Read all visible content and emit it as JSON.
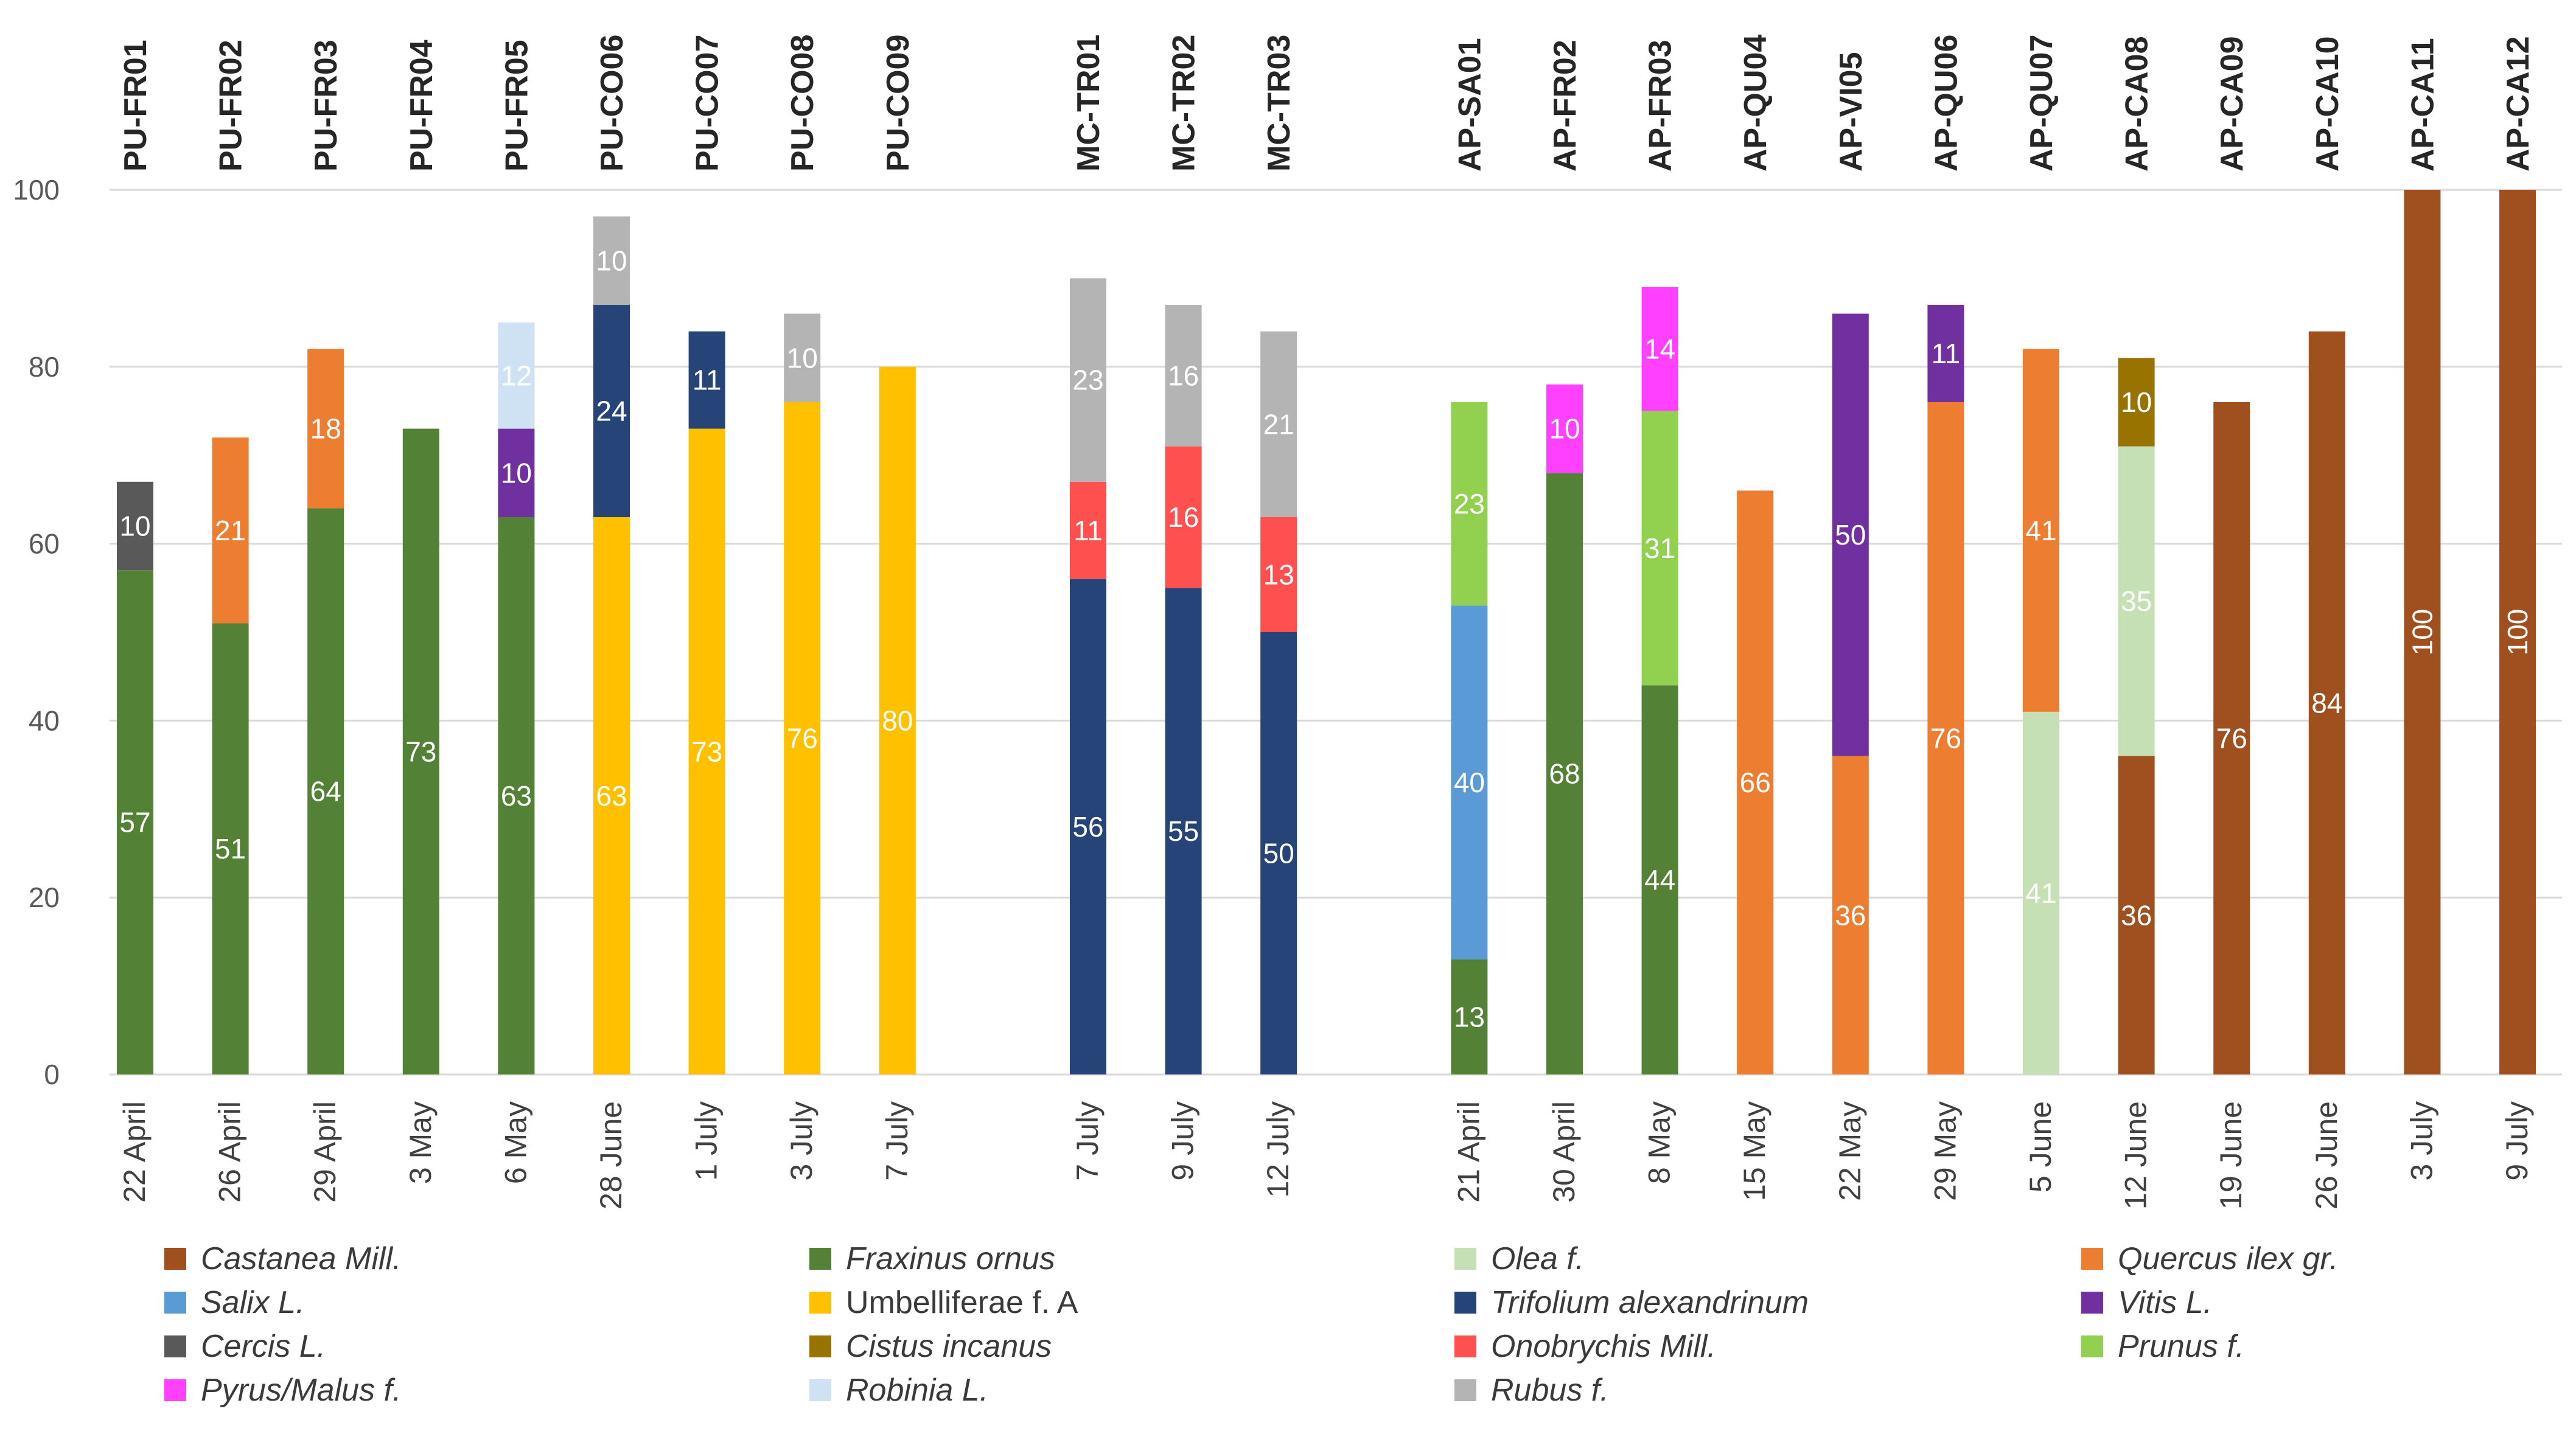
{
  "chart_data": {
    "type": "bar",
    "stacked": true,
    "title": "",
    "xlabel": "",
    "ylabel": "",
    "ylim": [
      0,
      100
    ],
    "yticks": [
      0,
      20,
      40,
      60,
      80,
      100
    ],
    "grid": true,
    "legend_position": "bottom",
    "groups": [
      {
        "name": "PU",
        "samples": [
          {
            "id": "PU-FR01",
            "date": "22 April",
            "segments": [
              {
                "taxon": "Fraxinus ornus",
                "value": 57
              },
              {
                "taxon": "Cercis L.",
                "value": 10
              }
            ]
          },
          {
            "id": "PU-FR02",
            "date": "26 April",
            "segments": [
              {
                "taxon": "Fraxinus ornus",
                "value": 51
              },
              {
                "taxon": "Quercus ilex gr.",
                "value": 21
              }
            ]
          },
          {
            "id": "PU-FR03",
            "date": "29 April",
            "segments": [
              {
                "taxon": "Fraxinus ornus",
                "value": 64
              },
              {
                "taxon": "Quercus ilex gr.",
                "value": 18
              }
            ]
          },
          {
            "id": "PU-FR04",
            "date": "3 May",
            "segments": [
              {
                "taxon": "Fraxinus ornus",
                "value": 73
              }
            ]
          },
          {
            "id": "PU-FR05",
            "date": "6 May",
            "segments": [
              {
                "taxon": "Fraxinus ornus",
                "value": 63
              },
              {
                "taxon": "Vitis L.",
                "value": 10
              },
              {
                "taxon": "Robinia L.",
                "value": 12
              }
            ]
          },
          {
            "id": "PU-CO06",
            "date": "28 June",
            "segments": [
              {
                "taxon": "Umbelliferae f. A",
                "value": 63
              },
              {
                "taxon": "Trifolium alexandrinum",
                "value": 24
              },
              {
                "taxon": "Rubus f.",
                "value": 10
              }
            ]
          },
          {
            "id": "PU-CO07",
            "date": "1 July",
            "segments": [
              {
                "taxon": "Umbelliferae f. A",
                "value": 73
              },
              {
                "taxon": "Trifolium alexandrinum",
                "value": 11
              }
            ]
          },
          {
            "id": "PU-CO08",
            "date": "3 July",
            "segments": [
              {
                "taxon": "Umbelliferae f. A",
                "value": 76
              },
              {
                "taxon": "Rubus f.",
                "value": 10
              }
            ]
          },
          {
            "id": "PU-CO09",
            "date": "7 July",
            "segments": [
              {
                "taxon": "Umbelliferae f. A",
                "value": 80
              }
            ]
          }
        ]
      },
      {
        "name": "MC",
        "samples": [
          {
            "id": "MC-TR01",
            "date": "7 July",
            "segments": [
              {
                "taxon": "Trifolium alexandrinum",
                "value": 56
              },
              {
                "taxon": "Onobrychis Mill.",
                "value": 11
              },
              {
                "taxon": "Rubus f.",
                "value": 23
              }
            ]
          },
          {
            "id": "MC-TR02",
            "date": "9 July",
            "segments": [
              {
                "taxon": "Trifolium alexandrinum",
                "value": 55
              },
              {
                "taxon": "Onobrychis Mill.",
                "value": 16
              },
              {
                "taxon": "Rubus f.",
                "value": 16
              }
            ]
          },
          {
            "id": "MC-TR03",
            "date": "12 July",
            "segments": [
              {
                "taxon": "Trifolium alexandrinum",
                "value": 50
              },
              {
                "taxon": "Onobrychis Mill.",
                "value": 13
              },
              {
                "taxon": "Rubus f.",
                "value": 21
              }
            ]
          }
        ]
      },
      {
        "name": "AP",
        "samples": [
          {
            "id": "AP-SA01",
            "date": "21 April",
            "segments": [
              {
                "taxon": "Fraxinus ornus",
                "value": 13
              },
              {
                "taxon": "Salix L.",
                "value": 40
              },
              {
                "taxon": "Prunus f.",
                "value": 23
              }
            ]
          },
          {
            "id": "AP-FR02",
            "date": "30 April",
            "segments": [
              {
                "taxon": "Fraxinus ornus",
                "value": 68
              },
              {
                "taxon": "Pyrus/Malus f.",
                "value": 10
              }
            ]
          },
          {
            "id": "AP-FR03",
            "date": "8 May",
            "segments": [
              {
                "taxon": "Fraxinus ornus",
                "value": 44
              },
              {
                "taxon": "Prunus f.",
                "value": 31
              },
              {
                "taxon": "Pyrus/Malus f.",
                "value": 14
              }
            ]
          },
          {
            "id": "AP-QU04",
            "date": "15 May",
            "segments": [
              {
                "taxon": "Quercus ilex gr.",
                "value": 66
              }
            ]
          },
          {
            "id": "AP-VI05",
            "date": "22 May",
            "segments": [
              {
                "taxon": "Quercus ilex gr.",
                "value": 36
              },
              {
                "taxon": "Vitis L.",
                "value": 50
              }
            ]
          },
          {
            "id": "AP-QU06",
            "date": "29 May",
            "segments": [
              {
                "taxon": "Quercus ilex gr.",
                "value": 76
              },
              {
                "taxon": "Vitis L.",
                "value": 11
              }
            ]
          },
          {
            "id": "AP-QU07",
            "date": "5 June",
            "segments": [
              {
                "taxon": "Olea f.",
                "value": 41
              },
              {
                "taxon": "Quercus ilex gr.",
                "value": 41
              }
            ]
          },
          {
            "id": "AP-CA08",
            "date": "12 June",
            "segments": [
              {
                "taxon": "Castanea Mill.",
                "value": 36
              },
              {
                "taxon": "Olea f.",
                "value": 35
              },
              {
                "taxon": "Cistus incanus",
                "value": 10
              }
            ]
          },
          {
            "id": "AP-CA09",
            "date": "19 June",
            "segments": [
              {
                "taxon": "Castanea Mill.",
                "value": 76
              }
            ]
          },
          {
            "id": "AP-CA10",
            "date": "26 June",
            "segments": [
              {
                "taxon": "Castanea Mill.",
                "value": 84
              }
            ]
          },
          {
            "id": "AP-CA11",
            "date": "3 July",
            "segments": [
              {
                "taxon": "Castanea Mill.",
                "value": 100
              }
            ]
          },
          {
            "id": "AP-CA12",
            "date": "9 July",
            "segments": [
              {
                "taxon": "Castanea Mill.",
                "value": 100
              }
            ]
          }
        ]
      }
    ],
    "legend": [
      {
        "label": "Castanea Mill.",
        "color": "#a0501e",
        "italic": true
      },
      {
        "label": "Fraxinus ornus",
        "color": "#538135",
        "italic": true
      },
      {
        "label": "Olea f.",
        "color": "#c5e0b4",
        "italic": true
      },
      {
        "label": "Quercus ilex gr.",
        "color": "#ed7d31",
        "italic": true
      },
      {
        "label": "Salix L.",
        "color": "#5b9bd5",
        "italic": true
      },
      {
        "label": "Umbelliferae f. A",
        "color": "#ffc000",
        "italic": false
      },
      {
        "label": "Trifolium alexandrinum",
        "color": "#264478",
        "italic": true
      },
      {
        "label": "Vitis L.",
        "color": "#7030a0",
        "italic": true
      },
      {
        "label": "Cercis L.",
        "color": "#595959",
        "italic": true
      },
      {
        "label": "Cistus incanus",
        "color": "#997300",
        "italic": true
      },
      {
        "label": "Onobrychis Mill.",
        "color": "#ff5050",
        "italic": true
      },
      {
        "label": "Prunus f.",
        "color": "#92d050",
        "italic": true
      },
      {
        "label": "Pyrus/Malus f.",
        "color": "#ff40ff",
        "italic": true
      },
      {
        "label": "Robinia L.",
        "color": "#cfe2f3",
        "italic": true
      },
      {
        "label": "Rubus f.",
        "color": "#b4b4b4",
        "italic": true
      }
    ]
  }
}
